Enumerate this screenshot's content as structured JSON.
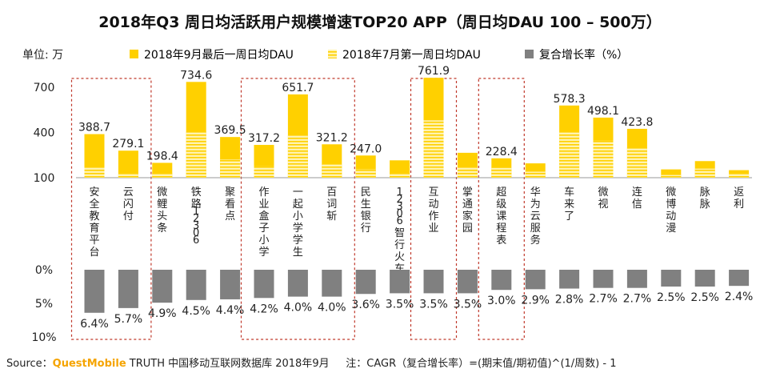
{
  "chart_data": {
    "type": "bar",
    "title": "2018年Q3 周日均活跃用户规模增速TOP20 APP（周日均DAU 100 – 500万）",
    "unit_label": "单位: 万",
    "legend": [
      {
        "name": "2018年9月最后一周日均DAU",
        "color": "#ffd000",
        "pattern": "solid"
      },
      {
        "name": "2018年7月第一周日均DAU",
        "color": "#ffd000",
        "pattern": "striped"
      },
      {
        "name": "复合增长率（%）",
        "color": "#808080",
        "pattern": "solid"
      }
    ],
    "y_ticks": [
      "700",
      "400",
      "100"
    ],
    "y_tick_values": [
      700,
      400,
      100
    ],
    "ylim": [
      100,
      800
    ],
    "cagr_ticks": [
      "0%",
      "5%",
      "10%"
    ],
    "cagr_tick_values": [
      0,
      5,
      10
    ],
    "cagr_lim": [
      0,
      10
    ],
    "categories": [
      "安全教育平台",
      "云闪付",
      "微鲤头条",
      "铁路12306",
      "聚看点",
      "作业盒子小学",
      "一起小学学生",
      "百词斩",
      "民生银行",
      "12306智行火车票",
      "互动作业",
      "掌通家园",
      "超级课程表",
      "华为云服务",
      "车来了",
      "微视",
      "连信",
      "微博动漫",
      "脉脉",
      "返利"
    ],
    "series": [
      {
        "name": "2018年9月最后一周日均DAU",
        "values": [
          388.7,
          279.1,
          198.4,
          734.6,
          369.5,
          317.2,
          651.7,
          321.2,
          247.0,
          215,
          761.9,
          265,
          228.4,
          195,
          578.3,
          498.1,
          423.8,
          155,
          210,
          150
        ],
        "labels": [
          "388.7",
          "279.1",
          "198.4",
          "734.6",
          "369.5",
          "317.2",
          "651.7",
          "321.2",
          "247.0",
          "",
          "761.9",
          "",
          "228.4",
          "",
          "578.3",
          "498.1",
          "423.8",
          "",
          "",
          ""
        ]
      },
      {
        "name": "2018年7月第一周日均DAU",
        "values": [
          170,
          125,
          130,
          405,
          220,
          175,
          380,
          190,
          155,
          130,
          480,
          170,
          165,
          140,
          400,
          345,
          300,
          118,
          160,
          125
        ]
      },
      {
        "name": "复合增长率（%）",
        "values": [
          6.4,
          5.7,
          4.9,
          4.5,
          4.4,
          4.2,
          4.0,
          4.0,
          3.6,
          3.5,
          3.5,
          3.5,
          3.0,
          2.9,
          2.8,
          2.7,
          2.7,
          2.5,
          2.5,
          2.4
        ],
        "labels": [
          "6.4%",
          "5.7%",
          "4.9%",
          "4.5%",
          "4.4%",
          "4.2%",
          "4.0%",
          "4.0%",
          "3.6%",
          "3.5%",
          "3.5%",
          "3.5%",
          "3.0%",
          "2.9%",
          "2.8%",
          "2.7%",
          "2.7%",
          "2.5%",
          "2.5%",
          "2.4%"
        ]
      }
    ],
    "highlight_groups": [
      [
        0,
        1
      ],
      [
        5,
        7
      ],
      [
        10,
        10
      ],
      [
        12,
        12
      ]
    ]
  },
  "source": {
    "prefix": "Source：",
    "brand": "QuestMobile",
    "text": " TRUTH 中国移动互联网数据库 2018年9月",
    "note": "注：CAGR（复合增长率）=(期末值/期初值)^(1/周数) - 1"
  },
  "colors": {
    "sept_bar": "#ffd000",
    "july_bar_bg": "#fff3b0",
    "july_stripe": "#ffd000",
    "cagr_bar": "#808080",
    "highlight_box": "#c0392b",
    "brand": "#f5a400"
  }
}
